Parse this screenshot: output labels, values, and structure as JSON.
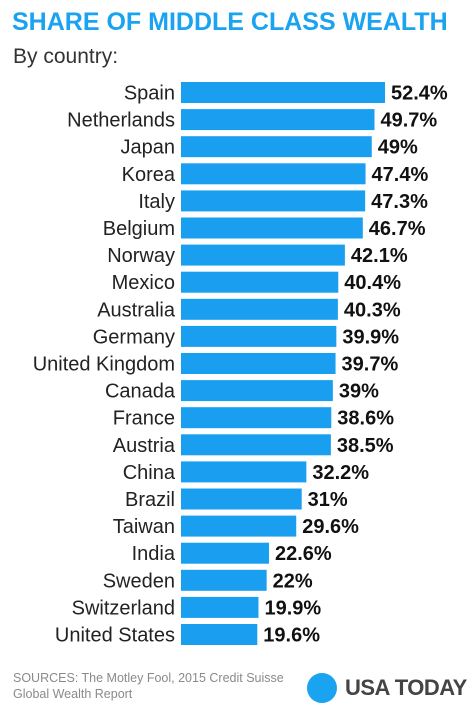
{
  "title": "SHARE OF MIDDLE CLASS WEALTH",
  "subtitle": "By country:",
  "sources": "SOURCES:  The Motley Fool, 2015 Credit Suisse Global Wealth Report",
  "logo_text": "USA TODAY",
  "colors": {
    "accent": "#1aa3f0",
    "bar": "#1a9ff0"
  },
  "chart_data": {
    "type": "bar",
    "orientation": "horizontal",
    "title": "SHARE OF MIDDLE CLASS WEALTH",
    "subtitle": "By country:",
    "categories": [
      "Spain",
      "Netherlands",
      "Japan",
      "Korea",
      "Italy",
      "Belgium",
      "Norway",
      "Mexico",
      "Australia",
      "Germany",
      "United Kingdom",
      "Canada",
      "France",
      "Austria",
      "China",
      "Brazil",
      "Taiwan",
      "India",
      "Sweden",
      "Switzerland",
      "United States"
    ],
    "values": [
      52.4,
      49.7,
      49,
      47.4,
      47.3,
      46.7,
      42.1,
      40.4,
      40.3,
      39.9,
      39.7,
      39,
      38.6,
      38.5,
      32.2,
      31,
      29.6,
      22.6,
      22,
      19.9,
      19.6
    ],
    "value_labels": [
      "52.4%",
      "49.7%",
      "49%",
      "47.4%",
      "47.3%",
      "46.7%",
      "42.1%",
      "40.4%",
      "40.3%",
      "39.9%",
      "39.7%",
      "39%",
      "38.6%",
      "38.5%",
      "32.2%",
      "31%",
      "29.6%",
      "22.6%",
      "22%",
      "19.9%",
      "19.6%"
    ],
    "grid": false,
    "legend": "none"
  }
}
